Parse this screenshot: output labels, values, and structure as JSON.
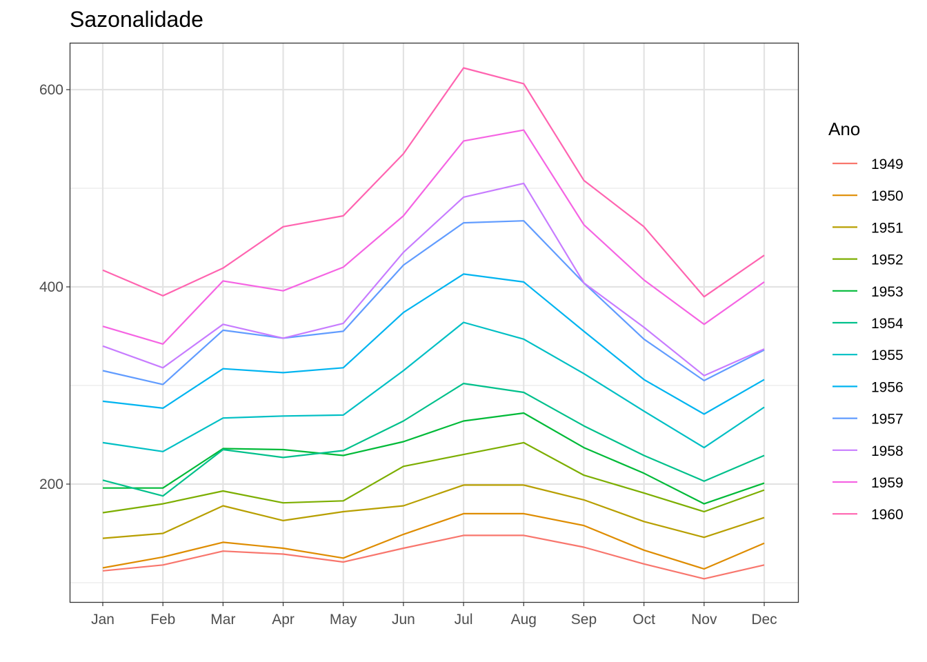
{
  "chart_data": {
    "type": "line",
    "title": "Sazonalidade",
    "xlabel": "",
    "ylabel": "",
    "categories": [
      "Jan",
      "Feb",
      "Mar",
      "Apr",
      "May",
      "Jun",
      "Jul",
      "Aug",
      "Sep",
      "Oct",
      "Nov",
      "Dec"
    ],
    "ylim": [
      80,
      650
    ],
    "yticks": [
      200,
      400,
      600
    ],
    "grid": true,
    "legend": {
      "title": "Ano",
      "position": "right"
    },
    "series": [
      {
        "name": "1949",
        "color": "#F8766D",
        "values": [
          112,
          118,
          132,
          129,
          121,
          135,
          148,
          148,
          136,
          119,
          104,
          118
        ]
      },
      {
        "name": "1950",
        "color": "#DE8C00",
        "values": [
          115,
          126,
          141,
          135,
          125,
          149,
          170,
          170,
          158,
          133,
          114,
          140
        ]
      },
      {
        "name": "1951",
        "color": "#B79F00",
        "values": [
          145,
          150,
          178,
          163,
          172,
          178,
          199,
          199,
          184,
          162,
          146,
          166
        ]
      },
      {
        "name": "1952",
        "color": "#7CAE00",
        "values": [
          171,
          180,
          193,
          181,
          183,
          218,
          230,
          242,
          209,
          191,
          172,
          194
        ]
      },
      {
        "name": "1953",
        "color": "#00BA38",
        "values": [
          196,
          196,
          236,
          235,
          229,
          243,
          264,
          272,
          237,
          211,
          180,
          201
        ]
      },
      {
        "name": "1954",
        "color": "#00C08B",
        "values": [
          204,
          188,
          235,
          227,
          234,
          264,
          302,
          293,
          259,
          229,
          203,
          229
        ]
      },
      {
        "name": "1955",
        "color": "#00BFC4",
        "values": [
          242,
          233,
          267,
          269,
          270,
          315,
          364,
          347,
          312,
          274,
          237,
          278
        ]
      },
      {
        "name": "1956",
        "color": "#00B4F0",
        "values": [
          284,
          277,
          317,
          313,
          318,
          374,
          413,
          405,
          355,
          306,
          271,
          306
        ]
      },
      {
        "name": "1957",
        "color": "#619CFF",
        "values": [
          315,
          301,
          356,
          348,
          355,
          422,
          465,
          467,
          404,
          347,
          305,
          336
        ]
      },
      {
        "name": "1958",
        "color": "#C77CFF",
        "values": [
          340,
          318,
          362,
          348,
          363,
          435,
          491,
          505,
          404,
          359,
          310,
          337
        ]
      },
      {
        "name": "1959",
        "color": "#F564E3",
        "values": [
          360,
          342,
          406,
          396,
          420,
          472,
          548,
          559,
          463,
          407,
          362,
          405
        ]
      },
      {
        "name": "1960",
        "color": "#FF64B0",
        "values": [
          417,
          391,
          419,
          461,
          472,
          535,
          622,
          606,
          508,
          461,
          390,
          432
        ]
      }
    ]
  }
}
